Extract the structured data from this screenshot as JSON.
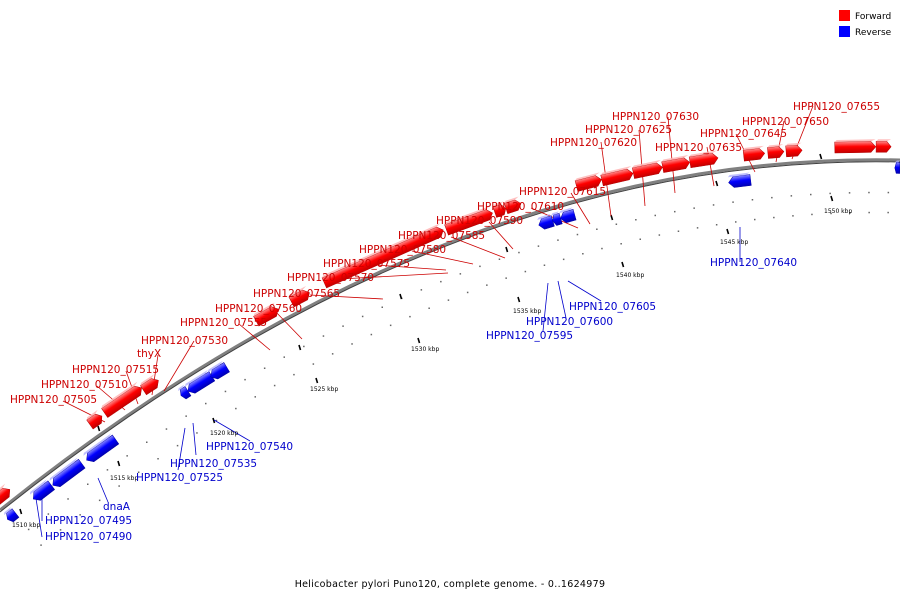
{
  "legend": {
    "items": [
      {
        "label": "Forward",
        "color": "#ff0000"
      },
      {
        "label": "Reverse",
        "color": "#0000ff"
      }
    ]
  },
  "caption": "Helicobacter pylori Puno120, complete genome. - 0..1624979",
  "scale_labels": [
    "1510 kbp",
    "1515 kbp",
    "1520 kbp",
    "1525 kbp",
    "1530 kbp",
    "1535 kbp",
    "1540 kbp",
    "1545 kbp",
    "1550 kbp"
  ],
  "forward_labels": [
    "HPPN120_07505",
    "HPPN120_07510",
    "HPPN120_07515",
    "thyX",
    "HPPN120_07530",
    "HPPN120_07555",
    "HPPN120_07560",
    "HPPN120_07565",
    "HPPN120_07570",
    "HPPN120_07575",
    "HPPN120_07580",
    "HPPN120_07585",
    "HPPN120_07590",
    "HPPN120_07610",
    "HPPN120_07615",
    "HPPN120_07620",
    "HPPN120_07625",
    "HPPN120_07630",
    "HPPN120_07635",
    "HPPN120_07645",
    "HPPN120_07650",
    "HPPN120_07655"
  ],
  "reverse_labels": [
    "HPPN120_07490",
    "HPPN120_07495",
    "dnaA",
    "HPPN120_07525",
    "HPPN120_07535",
    "HPPN120_07540",
    "HPPN120_07595",
    "HPPN120_07600",
    "HPPN120_07605",
    "HPPN120_07640"
  ],
  "colors": {
    "forward": "#ff0000",
    "reverse": "#0000ff",
    "backbone": "#808080"
  }
}
